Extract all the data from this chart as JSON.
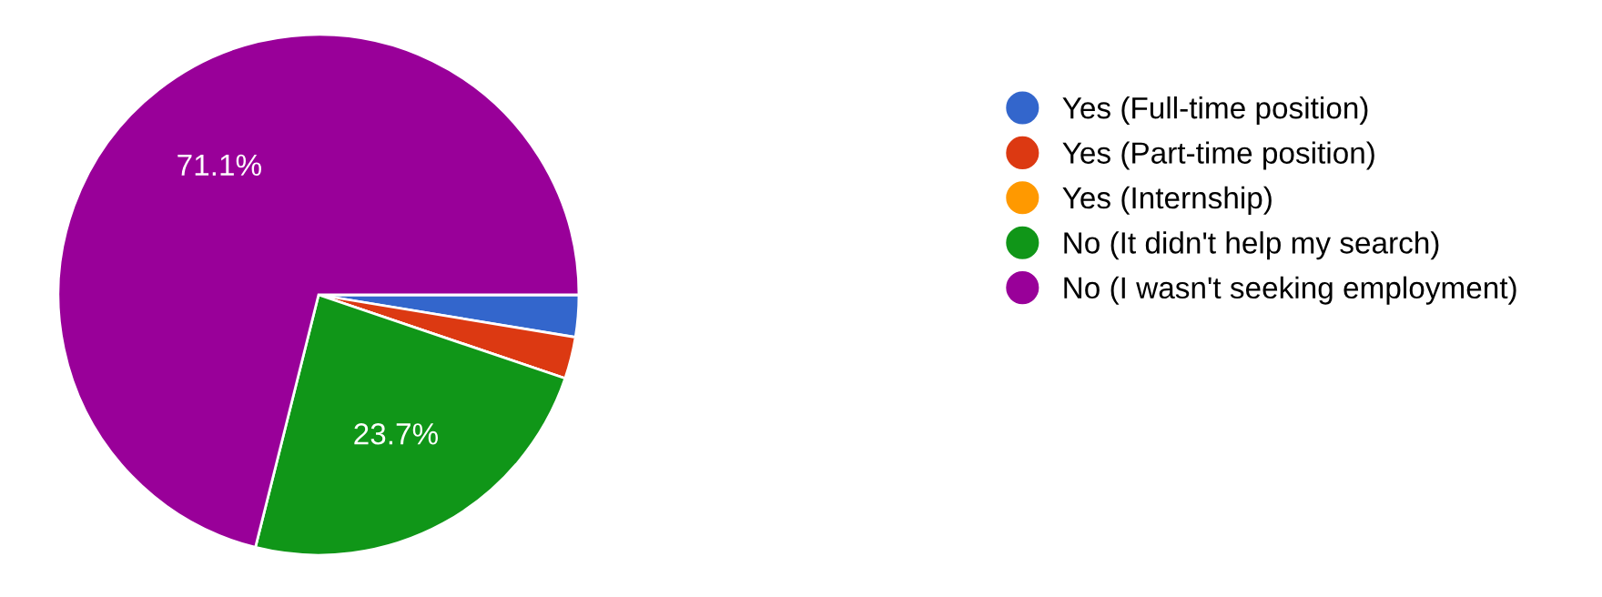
{
  "chart_data": {
    "type": "pie",
    "categories": [
      "Yes (Full-time position)",
      "Yes (Part-time position)",
      "Yes (Internship)",
      "No (It didn't help my search)",
      "No (I wasn't seeking employment)"
    ],
    "values": [
      2.6,
      2.6,
      0,
      23.7,
      71.1
    ],
    "colors": [
      "#3366cc",
      "#dc3912",
      "#ff9900",
      "#109618",
      "#990099"
    ],
    "value_labels": [
      null,
      null,
      null,
      "23.7%",
      "71.1%"
    ],
    "legend": "right"
  }
}
